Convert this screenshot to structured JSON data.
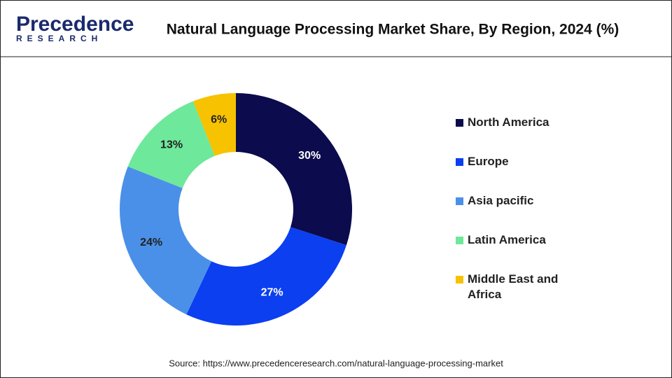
{
  "chart_data": {
    "type": "pie",
    "title": "Natural Language Processing Market Share, By Region, 2024 (%)",
    "categories": [
      "North America",
      "Europe",
      "Asia pacific",
      "Latin America",
      "Middle East and Africa"
    ],
    "values": [
      30,
      27,
      24,
      13,
      6
    ],
    "value_labels": [
      "30%",
      "27%",
      "24%",
      "13%",
      "6%"
    ],
    "colors": [
      "#0b0b4d",
      "#0b3ff0",
      "#4a90e8",
      "#6ee89a",
      "#f7c200"
    ],
    "donut": true,
    "legend": "right"
  },
  "logo": {
    "name": "Precedence",
    "tagline": "RESEARCH"
  },
  "source": "Source: https://www.precedenceresearch.com/natural-language-processing-market"
}
